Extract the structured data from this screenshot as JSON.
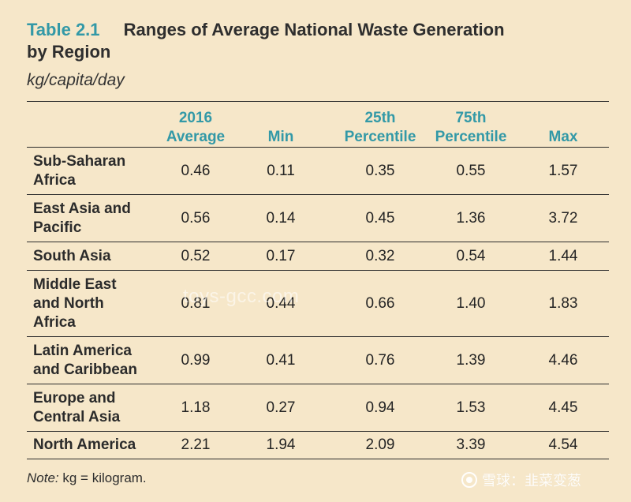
{
  "title": {
    "label": "Table 2.1",
    "line1": "Ranges of Average National Waste Generation",
    "line2": "by Region"
  },
  "subtitle": "kg/capita/day",
  "columns": {
    "average": "2016\nAverage",
    "min": "Min",
    "p25": "25th\nPercentile",
    "p75": "75th\nPercentile",
    "max": "Max"
  },
  "rows": [
    {
      "region": "Sub-Saharan\nAfrica",
      "average": "0.46",
      "min": "0.11",
      "p25": "0.35",
      "p75": "0.55",
      "max": "1.57"
    },
    {
      "region": "East Asia and\nPacific",
      "average": "0.56",
      "min": "0.14",
      "p25": "0.45",
      "p75": "1.36",
      "max": "3.72"
    },
    {
      "region": "South Asia",
      "average": "0.52",
      "min": "0.17",
      "p25": "0.32",
      "p75": "0.54",
      "max": "1.44"
    },
    {
      "region": "Middle East\nand North\nAfrica",
      "average": "0.81",
      "min": "0.44",
      "p25": "0.66",
      "p75": "1.40",
      "max": "1.83"
    },
    {
      "region": "Latin America\nand Caribbean",
      "average": "0.99",
      "min": "0.41",
      "p25": "0.76",
      "p75": "1.39",
      "max": "4.46"
    },
    {
      "region": "Europe and\nCentral Asia",
      "average": "1.18",
      "min": "0.27",
      "p25": "0.94",
      "p75": "1.53",
      "max": "4.45"
    },
    {
      "region": "North America",
      "average": "2.21",
      "min": "1.94",
      "p25": "2.09",
      "p75": "3.39",
      "max": "4.54"
    }
  ],
  "note": {
    "label": "Note:",
    "text": " kg = kilogram."
  },
  "watermarks": {
    "middle": "toys-gcc.com",
    "corner": "雪球：韭菜变葱"
  }
}
